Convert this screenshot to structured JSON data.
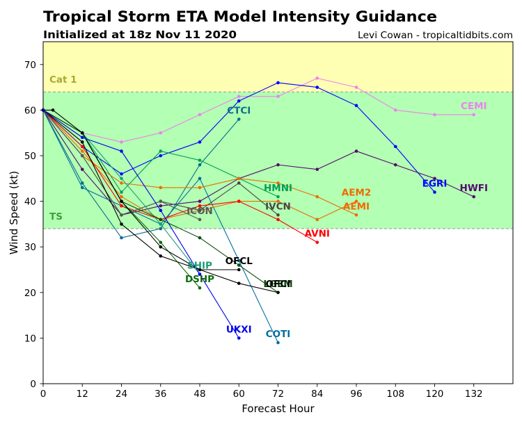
{
  "credit": "Levi Cowan - tropicaltidbits.com",
  "chart_data": {
    "type": "line",
    "title": "Tropical Storm ETA Model Intensity Guidance",
    "subtitle": "Initialized at 18z Nov 11 2020",
    "xlabel": "Forecast Hour",
    "ylabel": "Wind Speed (kt)",
    "xlim": [
      0,
      144
    ],
    "ylim": [
      0,
      75
    ],
    "xticks": [
      0,
      12,
      24,
      36,
      48,
      60,
      72,
      84,
      96,
      108,
      120,
      132
    ],
    "yticks": [
      0,
      10,
      20,
      30,
      40,
      50,
      60,
      70
    ],
    "grid": false,
    "bands": [
      {
        "label": "TS",
        "from": 34,
        "to": 64,
        "fill": "#b3ffb3",
        "label_color": "#3ca03c"
      },
      {
        "label": "Cat 1",
        "from": 64,
        "to": 75,
        "fill": "#ffffb3",
        "label_color": "#a8a832"
      }
    ],
    "series": [
      {
        "name": "CEMI",
        "color": "#ee82ee",
        "x": [
          0,
          12,
          24,
          36,
          48,
          60,
          72,
          84,
          96,
          108,
          120,
          132
        ],
        "y": [
          60,
          55,
          53,
          55,
          59,
          63,
          63,
          67,
          65,
          60,
          59,
          59
        ]
      },
      {
        "name": "EGRI",
        "color": "#0000ff",
        "x": [
          0,
          12,
          24,
          36,
          48,
          60,
          72,
          84,
          96,
          108,
          120
        ],
        "y": [
          60,
          52,
          46,
          50,
          53,
          62,
          66,
          65,
          61,
          52,
          42
        ]
      },
      {
        "name": "HWFI",
        "color": "#550a6e",
        "x": [
          0,
          12,
          24,
          36,
          48,
          60,
          72,
          84,
          96,
          108,
          120,
          132
        ],
        "y": [
          60,
          47,
          37,
          39,
          40,
          45,
          48,
          47,
          51,
          48,
          45,
          41
        ]
      },
      {
        "name": "CTCI",
        "color": "#0a6e8c",
        "x": [
          0,
          12,
          24,
          36,
          48,
          60
        ],
        "y": [
          60,
          44,
          32,
          34,
          48,
          58
        ]
      },
      {
        "name": "COTI",
        "color": "#006ea0",
        "x": [
          0,
          12,
          24,
          36,
          48,
          60,
          72
        ],
        "y": [
          60,
          43,
          39,
          35,
          45,
          27,
          9
        ]
      },
      {
        "name": "HMNI",
        "color": "#00a055",
        "x": [
          0,
          12,
          24,
          36,
          48,
          60,
          72
        ],
        "y": [
          60,
          55,
          42,
          51,
          49,
          45,
          41
        ]
      },
      {
        "name": "AEMI",
        "color": "#ee6a00",
        "x": [
          0,
          12,
          24,
          36,
          48,
          60,
          72,
          84,
          96
        ],
        "y": [
          60,
          50,
          44,
          43,
          43,
          45,
          44,
          41,
          37
        ]
      },
      {
        "name": "AEM2",
        "color": "#ee6a00",
        "x": [
          0,
          12,
          24,
          36,
          48,
          60,
          72,
          84,
          96
        ],
        "y": [
          60,
          51,
          41,
          36,
          38,
          40,
          40,
          36,
          40
        ]
      },
      {
        "name": "IVCN",
        "color": "#484848",
        "x": [
          0,
          12,
          24,
          36,
          48,
          60,
          72
        ],
        "y": [
          60,
          50,
          37,
          40,
          38,
          44,
          37
        ]
      },
      {
        "name": "ICON",
        "color": "#5a5a5a",
        "x": [
          0,
          12,
          24,
          36,
          48
        ],
        "y": [
          60,
          50,
          37,
          40,
          36
        ]
      },
      {
        "name": "AVNI",
        "color": "#ff0000",
        "x": [
          0,
          12,
          24,
          36,
          48,
          60,
          72,
          84
        ],
        "y": [
          60,
          52,
          39,
          36,
          39,
          40,
          36,
          31
        ]
      },
      {
        "name": "SHIP",
        "color": "#1b9e77",
        "x": [
          0,
          12,
          24,
          36,
          48
        ],
        "y": [
          60,
          55,
          45,
          35,
          24
        ]
      },
      {
        "name": "DSHP",
        "color": "#0d6b0d",
        "x": [
          0,
          12,
          24,
          36,
          48
        ],
        "y": [
          60,
          55,
          40,
          31,
          21
        ]
      },
      {
        "name": "LGEM",
        "color": "#0a4d0a",
        "x": [
          0,
          12,
          24,
          36,
          48,
          60,
          72
        ],
        "y": [
          60,
          55,
          40,
          36,
          32,
          26,
          20
        ]
      },
      {
        "name": "OFCI",
        "color": "#000000",
        "x": [
          0,
          12,
          24,
          36,
          48,
          60,
          72
        ],
        "y": [
          60,
          53,
          35,
          28,
          25,
          22,
          20
        ]
      },
      {
        "name": "OFCL",
        "color": "#000000",
        "x": [
          0,
          3,
          12,
          24,
          36,
          48,
          60
        ],
        "y": [
          60,
          60,
          55,
          40,
          30,
          25,
          25
        ]
      },
      {
        "name": "UKXI",
        "color": "#0000ee",
        "x": [
          0,
          12,
          24,
          36,
          48,
          60
        ],
        "y": [
          60,
          54,
          51,
          38,
          24,
          10
        ]
      }
    ]
  }
}
